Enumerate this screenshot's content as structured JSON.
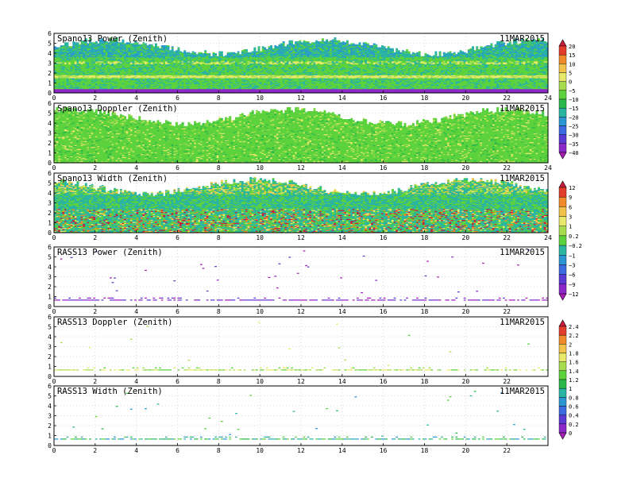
{
  "date_label": "11MAR2015",
  "x_ticks": [
    "0",
    "2",
    "4",
    "6",
    "8",
    "10",
    "12",
    "14",
    "16",
    "18",
    "20",
    "22",
    "24"
  ],
  "y_ticks": [
    "0",
    "1",
    "2",
    "3",
    "4",
    "5",
    "6"
  ],
  "colorbars": [
    {
      "labels": [
        "20",
        "15",
        "10",
        "5",
        "0",
        "−5",
        "−10",
        "−15",
        "−20",
        "−25",
        "−30",
        "−35",
        "−40"
      ],
      "colors": [
        "#c81e3c",
        "#e23c2c",
        "#f08a2a",
        "#f2c24a",
        "#e8e86a",
        "#a8dc50",
        "#5cd23c",
        "#2ab84a",
        "#2ab4a2",
        "#2a96d2",
        "#3c6ae0",
        "#5a3ad2",
        "#8c28c8",
        "#a81eb4"
      ]
    },
    {
      "labels": [
        "12",
        "9",
        "6",
        "3",
        "1",
        "0.2",
        "−0.2",
        "−1",
        "−3",
        "−6",
        "−9",
        "−12"
      ],
      "colors": [
        "#c81e3c",
        "#e23c2c",
        "#f08a2a",
        "#f2c24a",
        "#e8e86a",
        "#a8dc50",
        "#5cd23c",
        "#2ab4a2",
        "#2a96d2",
        "#3c6ae0",
        "#5a3ad2",
        "#8c28c8",
        "#a81eb4"
      ]
    },
    {
      "labels": [
        "2.4",
        "2.2",
        "2",
        "1.8",
        "1.6",
        "1.4",
        "1.2",
        "1",
        "0.8",
        "0.6",
        "0.4",
        "0.2",
        "0"
      ],
      "colors": [
        "#c81e3c",
        "#e23c2c",
        "#f08a2a",
        "#f2c24a",
        "#e8e86a",
        "#a8dc50",
        "#5cd23c",
        "#2ab84a",
        "#2ab4a2",
        "#2a96d2",
        "#3c6ae0",
        "#5a3ad2",
        "#8c28c8",
        "#a81eb4"
      ]
    }
  ],
  "chart_data": [
    {
      "type": "heatmap",
      "title": "Spano13 Power (Zenith)",
      "xlim": [
        0,
        24
      ],
      "ylim": [
        0,
        6
      ],
      "background": "filled",
      "dominant_colors": [
        "#5cd23c",
        "#2ab4a2",
        "#2a96d2",
        "#e8e86a",
        "#8c28c8"
      ],
      "notes": "dense field up to ~5 km; yellow/green bands near 1.6 and 3 km; purple at lowest gates"
    },
    {
      "type": "heatmap",
      "title": "Spano13 Doppler (Zenith)",
      "xlim": [
        0,
        24
      ],
      "ylim": [
        0,
        6
      ],
      "background": "filled",
      "dominant_colors": [
        "#5cd23c",
        "#2ab84a",
        "#a8dc50",
        "#e8e86a"
      ]
    },
    {
      "type": "heatmap",
      "title": "Spano13 Width (Zenith)",
      "xlim": [
        0,
        24
      ],
      "ylim": [
        0,
        6
      ],
      "background": "filled",
      "dominant_colors": [
        "#2ab4a2",
        "#5cd23c",
        "#e8e86a",
        "#f08a2a",
        "#c81e3c"
      ]
    },
    {
      "type": "scatter",
      "title": "RASS13 Power (Zenith)",
      "xlim": [
        0,
        24
      ],
      "ylim": [
        0,
        6
      ],
      "background": "sparse",
      "dominant_colors": [
        "#8c28c8",
        "#a81eb4",
        "#5a3ad2"
      ],
      "notes": "sparse points, dense band at ~0.8 km"
    },
    {
      "type": "scatter",
      "title": "RASS13 Doppler (Zenith)",
      "xlim": [
        0,
        24
      ],
      "ylim": [
        0,
        6
      ],
      "background": "sparse",
      "dominant_colors": [
        "#5cd23c",
        "#a8dc50",
        "#e8e86a"
      ]
    },
    {
      "type": "scatter",
      "title": "RASS13 Width (Zenith)",
      "xlim": [
        0,
        24
      ],
      "ylim": [
        0,
        6
      ],
      "background": "sparse",
      "dominant_colors": [
        "#2ab84a",
        "#2ab4a2",
        "#2a96d2",
        "#5cd23c"
      ]
    }
  ]
}
